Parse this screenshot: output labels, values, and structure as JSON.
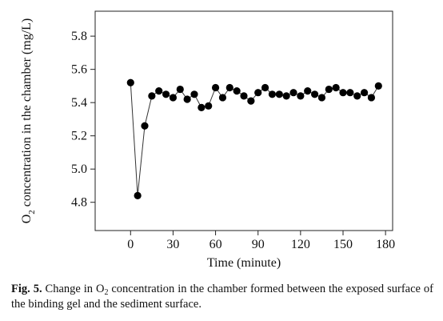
{
  "chart_data": {
    "type": "line",
    "markers": true,
    "xlabel": "Time (minute)",
    "ylabel_parts": {
      "pre": "O",
      "sub": "2",
      "post": " concentration in the chamber (mg/L)"
    },
    "xlim": [
      -25,
      185
    ],
    "ylim": [
      4.63,
      5.95
    ],
    "xticks": [
      0,
      30,
      60,
      90,
      120,
      150,
      180
    ],
    "yticks": [
      4.8,
      5.0,
      5.2,
      5.4,
      5.6,
      5.8
    ],
    "ytick_labels": [
      "4.8",
      "5.0",
      "5.2",
      "5.4",
      "5.6",
      "5.8"
    ],
    "grid": false,
    "line_color": "#333333",
    "marker_color": "#000000",
    "series": [
      {
        "x": [
          0,
          5,
          10,
          15,
          20,
          25,
          30,
          35,
          40,
          45,
          50,
          55,
          60,
          65,
          70,
          75,
          80,
          85,
          90,
          95,
          100,
          105,
          110,
          115,
          120,
          125,
          130,
          135,
          140,
          145,
          150,
          155,
          160,
          165,
          170,
          175
        ],
        "values": [
          5.52,
          4.84,
          5.26,
          5.44,
          5.47,
          5.45,
          5.43,
          5.48,
          5.42,
          5.45,
          5.37,
          5.38,
          5.49,
          5.43,
          5.49,
          5.47,
          5.44,
          5.41,
          5.46,
          5.49,
          5.45,
          5.45,
          5.44,
          5.46,
          5.44,
          5.47,
          5.45,
          5.43,
          5.48,
          5.49,
          5.46,
          5.46,
          5.44,
          5.46,
          5.43,
          5.5
        ]
      }
    ]
  },
  "caption": {
    "label": "Fig. 5.",
    "pre": " Change in O",
    "sub": "2",
    "post": " concentration in the chamber formed between the exposed surface of the binding gel and the sediment surface."
  }
}
